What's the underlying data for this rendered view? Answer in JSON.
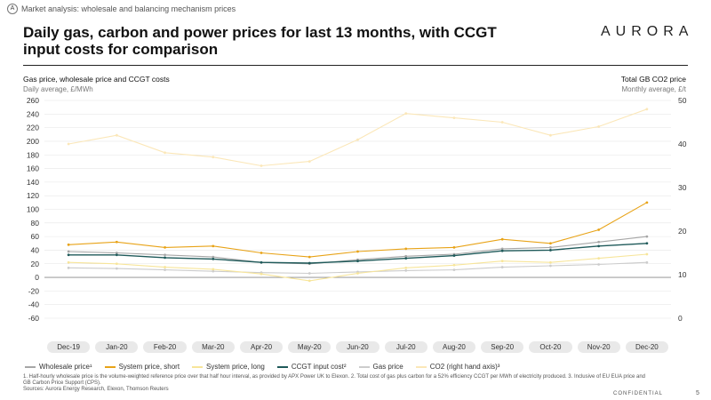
{
  "section": {
    "marker": "A",
    "label": "Market analysis:  wholesale and balancing mechanism prices"
  },
  "title": "Daily gas, carbon and power prices for last 13 months, with CCGT input costs for comparison",
  "logo": "AURORA",
  "left_axis": {
    "title": "Gas price, wholesale price and CCGT costs",
    "subtitle": "Daily average, £/MWh"
  },
  "right_axis": {
    "title": "Total GB CO2 price",
    "subtitle": "Monthly average, £/t"
  },
  "footnote": "1. Half-hourly wholesale price is the volume-weighted reference price over that half hour interval, as provided by APX Power UK to Elexon. 2. Total cost of gas plus carbon for a 52% efficiency CCGT per MWh of electricity produced. 3. Inclusive of EU EUA price and GB Carbon Price Support (CPS).",
  "sources": "Sources: Aurora Energy Research, Elexon, Thomson Reuters",
  "confidential": "CONFIDENTIAL",
  "page_number": "5",
  "colors": {
    "wholesale": "#a6a6a6",
    "system_short": "#e8a317",
    "system_long": "#f7e59a",
    "ccgt": "#1f5a5a",
    "gas": "#cccccc",
    "co2": "#fbe7b8"
  },
  "chart_data": {
    "type": "line",
    "x": [
      "Dec-19",
      "Jan-20",
      "Feb-20",
      "Mar-20",
      "Apr-20",
      "May-20",
      "Jun-20",
      "Jul-20",
      "Aug-20",
      "Sep-20",
      "Oct-20",
      "Nov-20",
      "Dec-20"
    ],
    "x_labels": [
      "Dec-19",
      "Jan-20",
      "Feb-20",
      "Mar-20",
      "Apr-20",
      "May-20",
      "Jun-20",
      "Jul-20",
      "Aug-20",
      "Sep-20",
      "Oct-20",
      "Nov-20",
      "Dec-20"
    ],
    "ylim": [
      -60,
      260
    ],
    "y_ticks": [
      -60,
      -40,
      -20,
      0,
      20,
      40,
      60,
      80,
      100,
      120,
      140,
      160,
      180,
      200,
      220,
      240,
      260
    ],
    "y2lim": [
      0,
      50
    ],
    "y2_ticks": [
      0,
      10,
      20,
      30,
      40,
      50
    ],
    "series": [
      {
        "name": "Wholesale price¹",
        "axis": "left",
        "values": [
          38,
          36,
          33,
          30,
          22,
          20,
          26,
          31,
          34,
          42,
          44,
          52,
          60
        ]
      },
      {
        "name": "System price, short",
        "axis": "left",
        "values": [
          48,
          52,
          44,
          46,
          36,
          30,
          38,
          42,
          44,
          56,
          50,
          70,
          110
        ]
      },
      {
        "name": "System price, long",
        "axis": "left",
        "values": [
          22,
          20,
          15,
          12,
          5,
          -5,
          6,
          14,
          18,
          24,
          22,
          28,
          34
        ]
      },
      {
        "name": "CCGT input cost²",
        "axis": "left",
        "values": [
          33,
          33,
          29,
          27,
          22,
          21,
          24,
          28,
          32,
          39,
          40,
          46,
          50
        ]
      },
      {
        "name": "Gas price",
        "axis": "left",
        "values": [
          14,
          13,
          11,
          9,
          7,
          6,
          8,
          10,
          11,
          15,
          17,
          19,
          22
        ]
      },
      {
        "name": "CO2 (right hand axis)³",
        "axis": "right",
        "values": [
          40,
          42,
          38,
          37,
          35,
          36,
          41,
          47,
          46,
          45,
          42,
          44,
          48
        ]
      }
    ]
  }
}
